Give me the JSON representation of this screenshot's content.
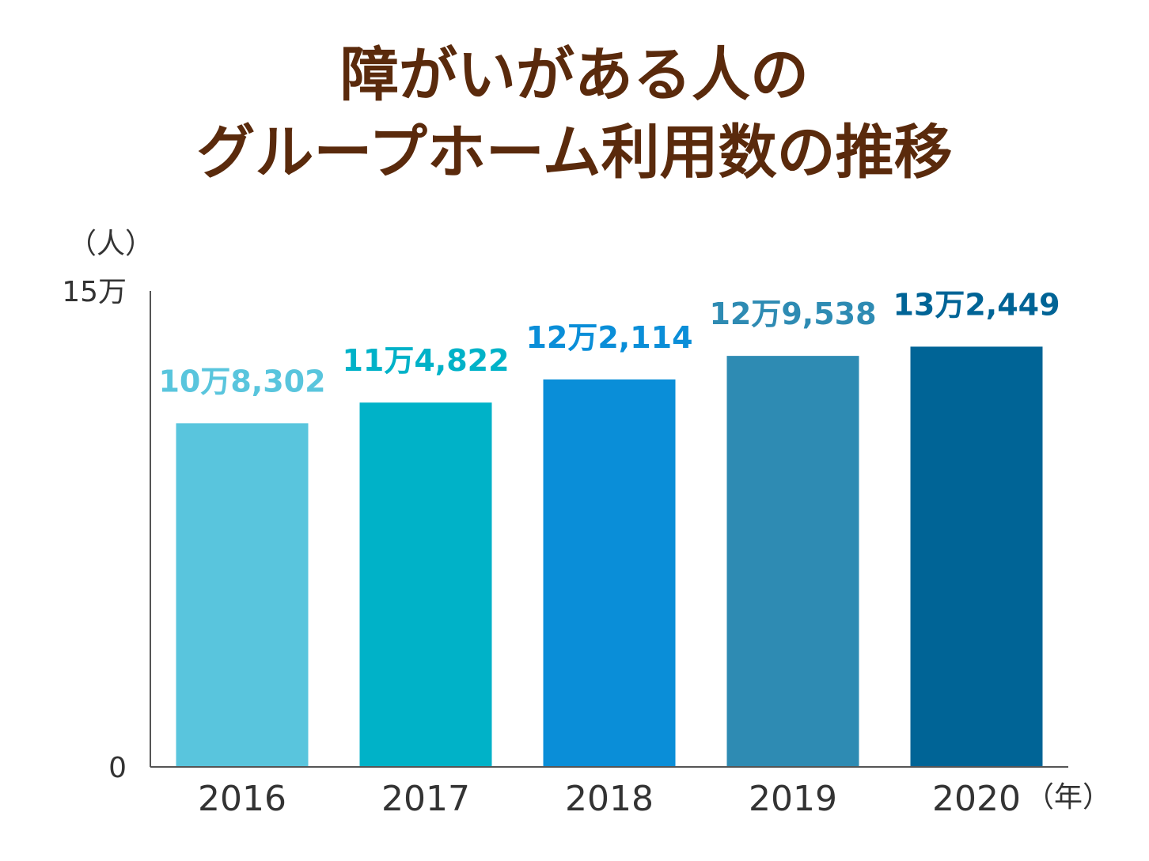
{
  "title_lines": [
    "障がいがある人の",
    "グループホーム利用数の推移"
  ],
  "chart_data": {
    "type": "bar",
    "title": "障がいがある人の グループホーム利用数の推移",
    "categories": [
      "2016",
      "2017",
      "2018",
      "2019",
      "2020"
    ],
    "values": [
      108302,
      114822,
      122114,
      129538,
      132449
    ],
    "data_labels": [
      "10万8,302",
      "11万4,822",
      "12万2,114",
      "12万9,538",
      "13万2,449"
    ],
    "colors": [
      "#59c5dd",
      "#00b2c8",
      "#0a8ed8",
      "#2e8bb3",
      "#006496"
    ],
    "ylim": [
      0,
      150000
    ],
    "y_ticks": [
      {
        "value": 0,
        "label": "0"
      },
      {
        "value": 150000,
        "label": "15万"
      }
    ],
    "y_unit": "（人）",
    "x_unit": "（年）",
    "grid": false,
    "legend": "none"
  }
}
